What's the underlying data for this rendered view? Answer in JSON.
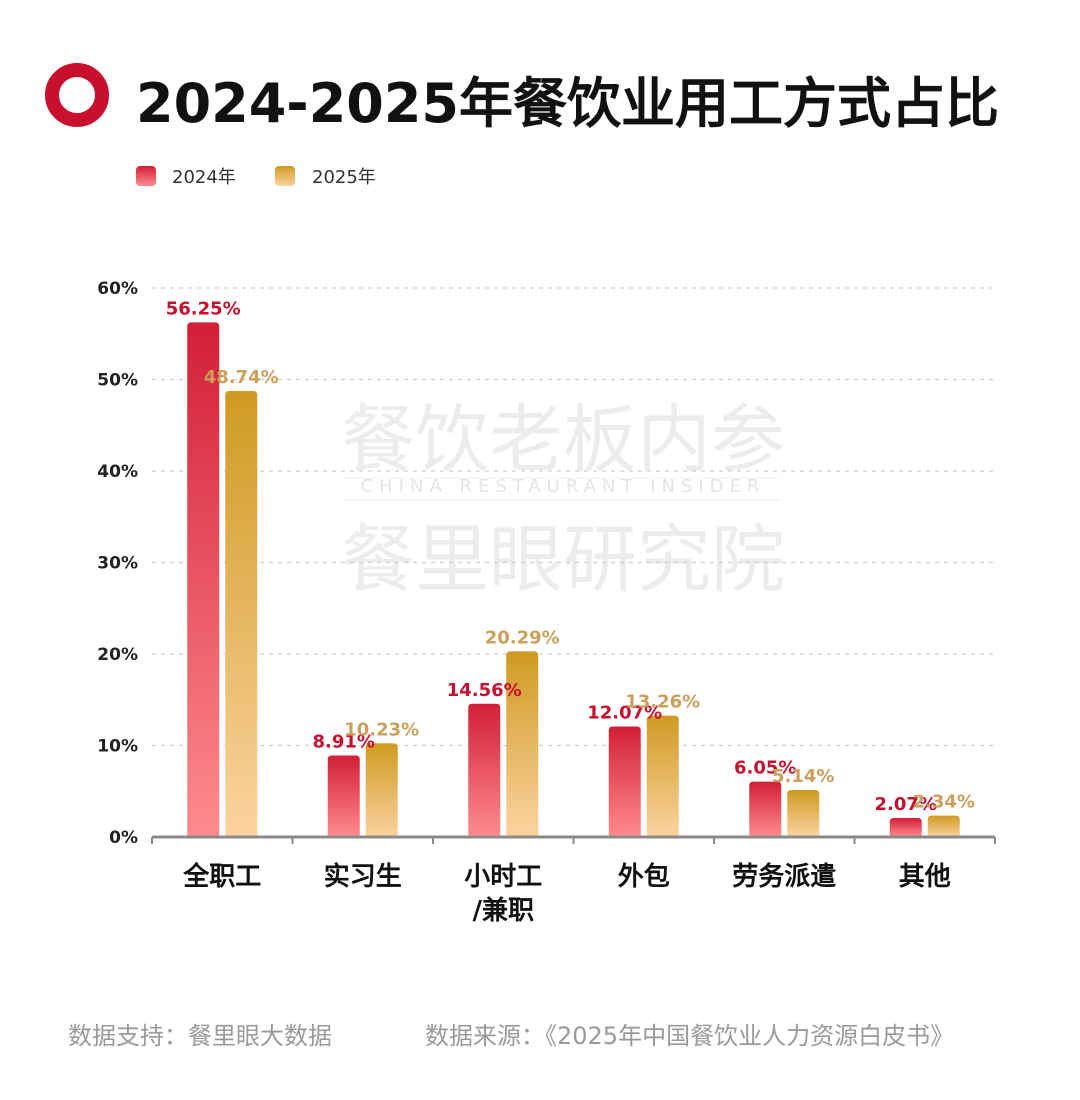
{
  "chart_data": {
    "type": "bar",
    "title": "2024-2025年餐饮业用工方式占比",
    "categories": [
      "全职工",
      "实习生",
      "小时工\n/兼职",
      "外包",
      "劳务派遣",
      "其他"
    ],
    "series": [
      {
        "name": "2024年",
        "values": [
          56.25,
          8.91,
          14.56,
          12.07,
          6.05,
          2.07
        ],
        "labels": [
          "56.25%",
          "8.91%",
          "14.56%",
          "12.07%",
          "6.05%",
          "2.07%"
        ]
      },
      {
        "name": "2025年",
        "values": [
          48.74,
          10.23,
          20.29,
          13.26,
          5.14,
          2.34
        ],
        "labels": [
          "48.74%",
          "10.23%",
          "20.29%",
          "13.26%",
          "5.14%",
          "2.34%"
        ]
      }
    ],
    "ylim": [
      0,
      60
    ],
    "yticks": [
      0,
      10,
      20,
      30,
      40,
      50,
      60
    ],
    "ytick_labels": [
      "0%",
      "10%",
      "20%",
      "30%",
      "40%",
      "50%",
      "60%"
    ],
    "grid": true,
    "legend": "top-left",
    "xlabel": "",
    "ylabel": ""
  },
  "colors": {
    "s2024_top": "#d21f35",
    "s2024_bottom": "#ff8c8c",
    "s2025_top": "#cf9a22",
    "s2025_bottom": "#fcd3a0",
    "label2024": "#c8102e",
    "label2025": "#cca05c",
    "title_icon": "#c8102e"
  },
  "watermark": {
    "line1": "餐饮老板内参",
    "line2": "CHINA RESTAURANT INSIDER",
    "line3": "餐里眼研究院"
  },
  "footer": {
    "support": "数据支持：餐里眼大数据",
    "source": "数据来源：《2025年中国餐饮业人力资源白皮书》"
  }
}
